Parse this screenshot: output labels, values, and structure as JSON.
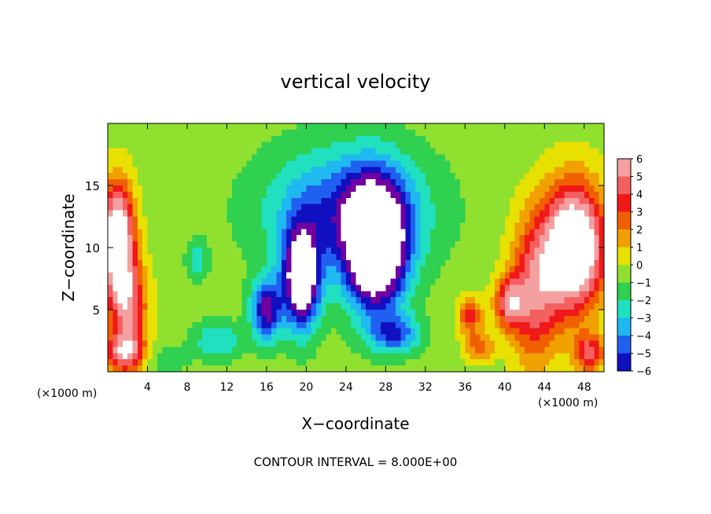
{
  "chart_data": {
    "type": "heatmap",
    "title": "vertical velocity",
    "xlabel": "X−coordinate",
    "ylabel": "Z−coordinate",
    "x_unit_label": "(×1000 m)",
    "x_unit_label_right": "(×1000 m)",
    "footer": "CONTOUR INTERVAL = 8.000E+00",
    "xlim": [
      0,
      50
    ],
    "ylim": [
      0,
      20
    ],
    "x_ticks": [
      4,
      8,
      12,
      16,
      20,
      24,
      28,
      32,
      36,
      40,
      44,
      48
    ],
    "x_tick_labels": [
      "4",
      "8",
      "12",
      "16",
      "20",
      "24",
      "28",
      "32",
      "36",
      "40",
      "44",
      "48"
    ],
    "y_ticks": [
      5,
      10,
      15
    ],
    "y_tick_labels": [
      "5",
      "10",
      "15"
    ],
    "colorbar": {
      "values": [
        6,
        5,
        4,
        3,
        2,
        1,
        0,
        -1,
        -2,
        -3,
        -4,
        -5,
        -6
      ],
      "labels": [
        "6",
        "5",
        "4",
        "3",
        "2",
        "1",
        "0",
        "−1",
        "−2",
        "−3",
        "−4",
        "−5",
        "−6"
      ],
      "colors": [
        "#f4a0a0",
        "#f46060",
        "#f01818",
        "#f06000",
        "#f0a000",
        "#e8e000",
        "#90e030",
        "#30d050",
        "#20e0c0",
        "#20b8f0",
        "#2060f0",
        "#1010c0",
        "#7000a0"
      ],
      "saturation_color": "#ffffff"
    },
    "features": [
      {
        "type": "updraft",
        "x": 1,
        "z": 10.5,
        "amplitude": 9.5,
        "sx": 1.6,
        "sz": 4.5
      },
      {
        "type": "updraft",
        "x": 2.2,
        "z": 5,
        "amplitude": 5,
        "sx": 1.8,
        "sz": 4
      },
      {
        "type": "updraft",
        "x": 1.5,
        "z": 1.5,
        "amplitude": 5,
        "sx": 2,
        "sz": 1.5
      },
      {
        "type": "updraft",
        "x": 47,
        "z": 10,
        "amplitude": 10,
        "sx": 3,
        "sz": 5
      },
      {
        "type": "updraft",
        "x": 43,
        "z": 6.5,
        "amplitude": 5,
        "sx": 2.5,
        "sz": 6
      },
      {
        "type": "updraft",
        "x": 40.5,
        "z": 5.5,
        "amplitude": 5,
        "sx": 1.5,
        "sz": 2
      },
      {
        "type": "updraft",
        "x": 48.5,
        "z": 1.5,
        "amplitude": 5,
        "sx": 1.5,
        "sz": 1.5
      },
      {
        "type": "updraft",
        "x": 36.5,
        "z": 4.5,
        "amplitude": 4,
        "sx": 1.2,
        "sz": 1.5
      },
      {
        "type": "updraft",
        "x": 37.5,
        "z": 2,
        "amplitude": 3,
        "sx": 1.5,
        "sz": 1.2
      },
      {
        "type": "downdraft",
        "x": 27,
        "z": 10,
        "amplitude": -10.5,
        "sx": 3,
        "sz": 5
      },
      {
        "type": "downdraft",
        "x": 19.5,
        "z": 7.5,
        "amplitude": -9,
        "sx": 1.8,
        "sz": 4
      },
      {
        "type": "downdraft",
        "x": 16,
        "z": 5,
        "amplitude": -6,
        "sx": 1.5,
        "sz": 2.5
      },
      {
        "type": "downdraft",
        "x": 24,
        "z": 13,
        "amplitude": -4.5,
        "sx": 8,
        "sz": 5
      },
      {
        "type": "downdraft",
        "x": 29,
        "z": 3,
        "amplitude": -4,
        "sx": 2.5,
        "sz": 1.5
      },
      {
        "type": "downdraft",
        "x": 11,
        "z": 2.5,
        "amplitude": -2.5,
        "sx": 2.5,
        "sz": 1.5
      },
      {
        "type": "downdraft",
        "x": 9,
        "z": 9,
        "amplitude": -2.5,
        "sx": 1,
        "sz": 1.5
      },
      {
        "type": "downdraft",
        "x": 6,
        "z": 1,
        "amplitude": -1.5,
        "sx": 2,
        "sz": 1
      }
    ]
  }
}
